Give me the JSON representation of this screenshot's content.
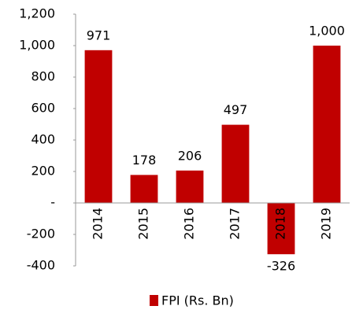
{
  "chart_data": {
    "type": "bar",
    "categories": [
      "2014",
      "2015",
      "2016",
      "2017",
      "2018",
      "2019"
    ],
    "series": [
      {
        "name": "FPI (Rs. Bn)",
        "color": "#c00000",
        "values": [
          971,
          178,
          206,
          497,
          -326,
          1000
        ],
        "value_labels": [
          "971",
          "178",
          "206",
          "497",
          "-326",
          "1,000"
        ]
      }
    ],
    "ylim": [
      -400,
      1200
    ],
    "yticks": [
      -400,
      -200,
      {
        "value": 0,
        "label": "-"
      },
      200,
      400,
      600,
      800,
      {
        "value": 1000,
        "label": "1,000"
      },
      {
        "value": 1200,
        "label": "1,200"
      }
    ],
    "grid": false,
    "legend": "bottom"
  }
}
